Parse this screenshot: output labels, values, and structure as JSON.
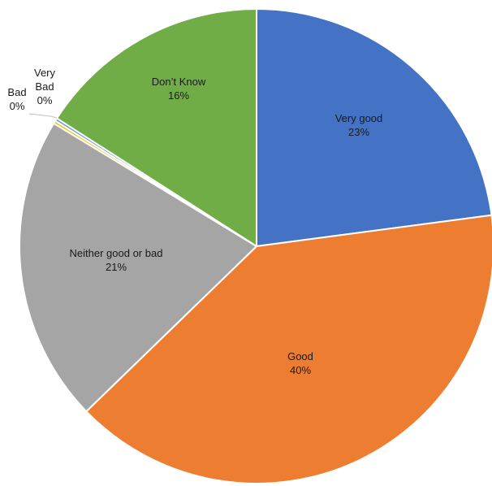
{
  "chart_data": {
    "type": "pie",
    "title": "",
    "start_angle_deg": 0,
    "direction": "clockwise",
    "slices": [
      {
        "label": "Very good",
        "percent_label": "23%",
        "value": 23,
        "color": "#4472C4"
      },
      {
        "label": "Good",
        "percent_label": "40%",
        "value": 40,
        "color": "#ED7D31"
      },
      {
        "label": "Neither good or bad",
        "percent_label": "21%",
        "value": 21,
        "color": "#A5A5A5"
      },
      {
        "label": "Bad",
        "percent_label": "0%",
        "value": 0.2,
        "color": "#FFC000"
      },
      {
        "label": "Very Bad",
        "percent_label": "0%",
        "value": 0.2,
        "color": "#5B9BD5"
      },
      {
        "label": "Don’t Know",
        "percent_label": "16%",
        "value": 16,
        "color": "#70AD47"
      }
    ]
  }
}
